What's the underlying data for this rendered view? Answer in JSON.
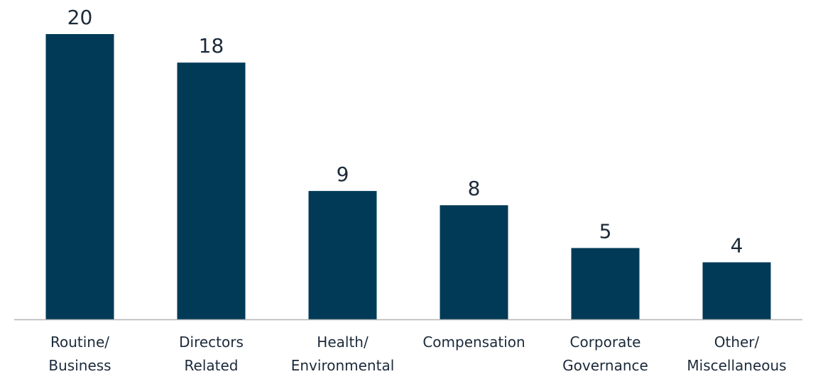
{
  "colors": {
    "bar": "#003a57",
    "text": "#1b2a3a",
    "axis": "#b3b3b3",
    "background": "#ffffff"
  },
  "chart_data": {
    "type": "bar",
    "categories": [
      [
        "Routine/",
        "Business"
      ],
      [
        "Directors",
        "Related"
      ],
      [
        "Health/",
        "Environmental"
      ],
      [
        "Compensation"
      ],
      [
        "Corporate",
        "Governance"
      ],
      [
        "Other/",
        "Miscellaneous"
      ]
    ],
    "values": [
      20,
      18,
      9,
      8,
      5,
      4
    ],
    "title": "",
    "xlabel": "",
    "ylabel": "",
    "ylim": [
      0,
      20
    ],
    "grid": false,
    "legend": "none",
    "data_labels": true
  }
}
